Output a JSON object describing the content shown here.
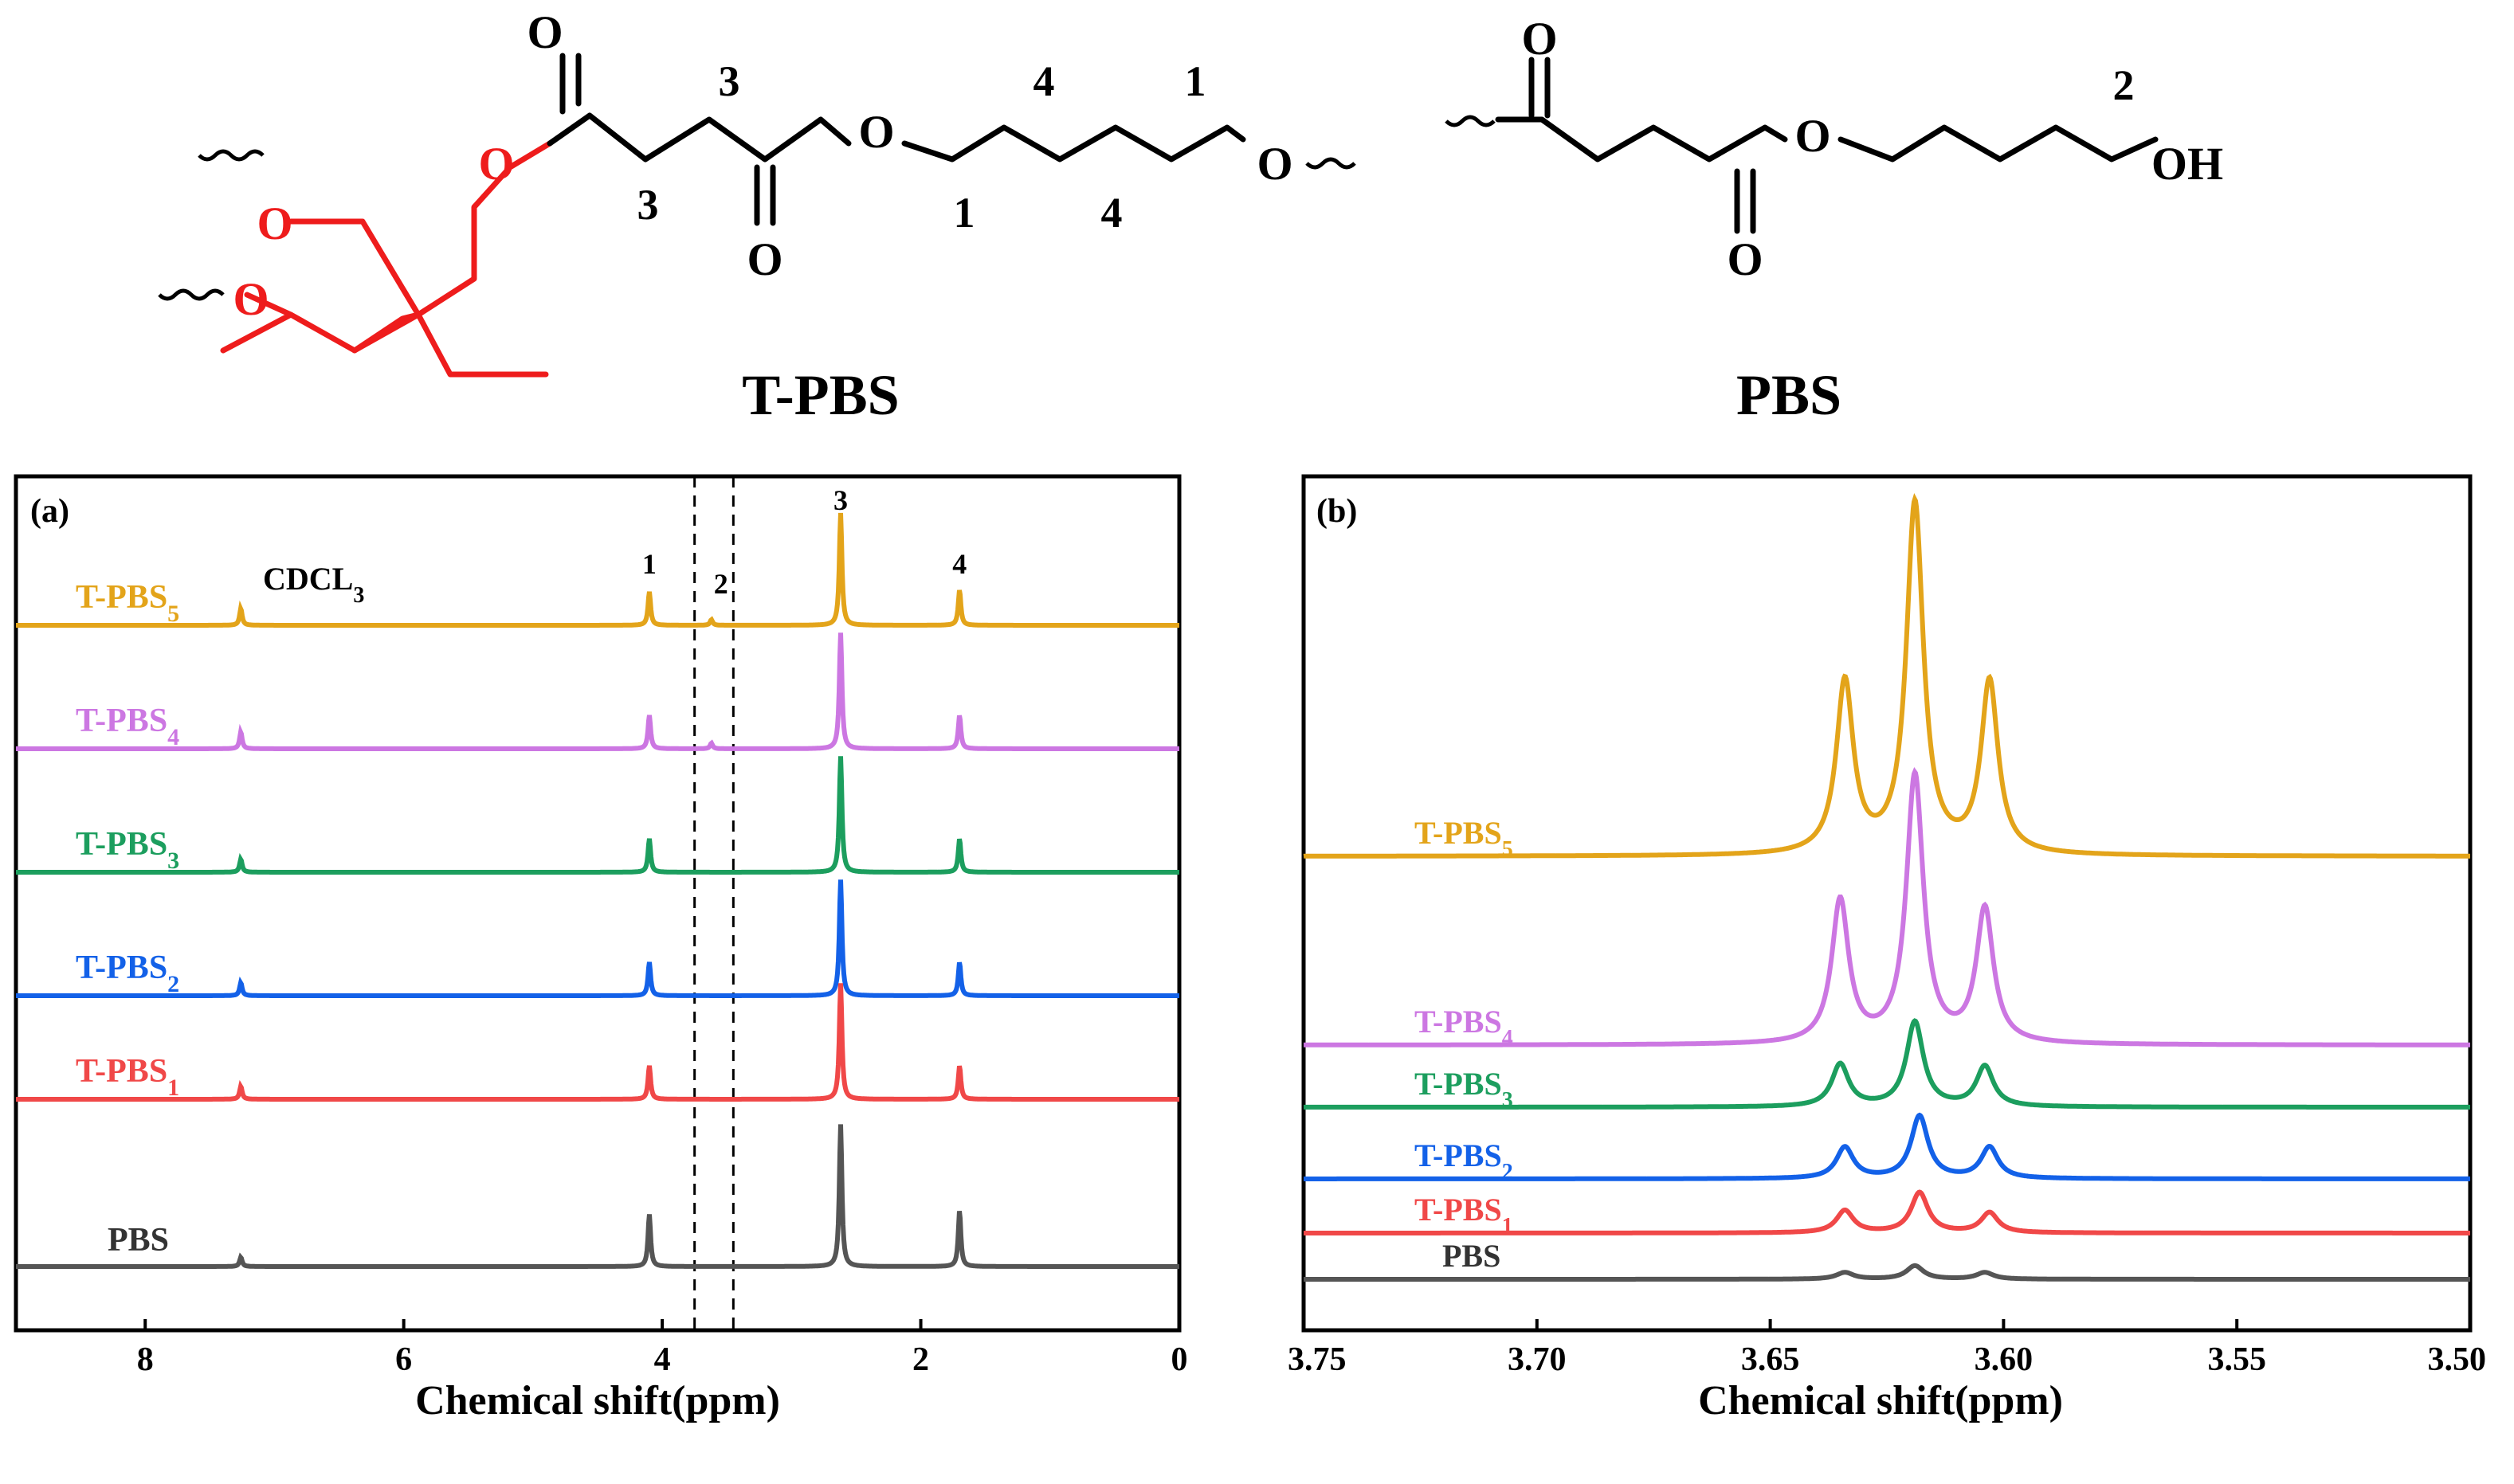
{
  "structures": {
    "tpbs": {
      "name": "T-PBS",
      "atoms": {
        "o_top": "O",
        "o_bottom": "O",
        "o_right": "O",
        "o_ester_red": "O",
        "o_red_1": "O",
        "o_red_2": "O"
      },
      "numbers": {
        "n3_top": "3",
        "n3_bottom": "3",
        "n4_top": "4",
        "n4_bottom": "4",
        "n1_top": "1",
        "n1_bottom": "1"
      }
    },
    "pbs": {
      "name": "PBS",
      "atoms": {
        "o_top": "O",
        "o_bottom": "O",
        "o_ester": "O",
        "oh": "OH"
      },
      "numbers": {
        "n2": "2"
      }
    },
    "colors": {
      "red": "#ee1c1c",
      "black": "#000000"
    }
  },
  "chart_data": [
    {
      "type": "line",
      "panel": "(a)",
      "title": "",
      "xlabel": "Chemical shift(ppm)",
      "ylabel": "",
      "xlim": [
        9,
        0
      ],
      "x_reversed": true,
      "x_ticks": [
        "8",
        "6",
        "4",
        "2",
        "0"
      ],
      "x_tick_values": [
        8,
        6,
        4,
        2,
        0
      ],
      "grid": false,
      "annotations": {
        "solvent": "CDCL",
        "solvent_sub": "3",
        "peak_1": "1",
        "peak_2": "2",
        "peak_3": "3",
        "peak_4": "4"
      },
      "solvent_shift": 7.26,
      "dashed_lines": [
        3.75,
        3.45
      ],
      "series": [
        {
          "name": "T-PBS",
          "sub": "5",
          "color": "#e3a41a",
          "peaks": [
            {
              "x": 7.26,
              "h": 0.09
            },
            {
              "x": 4.1,
              "h": 0.18
            },
            {
              "x": 3.62,
              "h": 0.03
            },
            {
              "x": 2.62,
              "h": 0.6
            },
            {
              "x": 1.7,
              "h": 0.19
            }
          ]
        },
        {
          "name": "T-PBS",
          "sub": "4",
          "color": "#cc77e2",
          "peaks": [
            {
              "x": 7.26,
              "h": 0.09
            },
            {
              "x": 4.1,
              "h": 0.18
            },
            {
              "x": 3.62,
              "h": 0.03
            },
            {
              "x": 2.62,
              "h": 0.62
            },
            {
              "x": 1.7,
              "h": 0.18
            }
          ]
        },
        {
          "name": "T-PBS",
          "sub": "3",
          "color": "#1c9e5e",
          "peaks": [
            {
              "x": 7.26,
              "h": 0.07
            },
            {
              "x": 4.1,
              "h": 0.18
            },
            {
              "x": 2.62,
              "h": 0.62
            },
            {
              "x": 1.7,
              "h": 0.18
            }
          ]
        },
        {
          "name": "T-PBS",
          "sub": "2",
          "color": "#1361e8",
          "peaks": [
            {
              "x": 7.26,
              "h": 0.07
            },
            {
              "x": 4.1,
              "h": 0.18
            },
            {
              "x": 2.62,
              "h": 0.62
            },
            {
              "x": 1.7,
              "h": 0.18
            }
          ]
        },
        {
          "name": "T-PBS",
          "sub": "1",
          "color": "#f04848",
          "peaks": [
            {
              "x": 7.26,
              "h": 0.07
            },
            {
              "x": 4.1,
              "h": 0.18
            },
            {
              "x": 2.62,
              "h": 0.62
            },
            {
              "x": 1.7,
              "h": 0.18
            }
          ]
        },
        {
          "name": "PBS",
          "sub": "",
          "color": "#555555",
          "peaks": [
            {
              "x": 7.26,
              "h": 0.05
            },
            {
              "x": 4.1,
              "h": 0.28
            },
            {
              "x": 2.62,
              "h": 0.76
            },
            {
              "x": 1.7,
              "h": 0.3
            }
          ]
        }
      ]
    },
    {
      "type": "line",
      "panel": "(b)",
      "title": "",
      "xlabel": "Chemical shift(ppm)",
      "ylabel": "",
      "xlim": [
        3.75,
        3.5
      ],
      "x_reversed": true,
      "x_ticks": [
        "3.75",
        "3.70",
        "3.65",
        "3.60",
        "3.55",
        "3.50"
      ],
      "x_tick_values": [
        3.75,
        3.7,
        3.65,
        3.6,
        3.55,
        3.5
      ],
      "grid": false,
      "series": [
        {
          "name": "T-PBS",
          "sub": "5",
          "color": "#e3a41a",
          "peaks": [
            {
              "x": 3.634,
              "h": 0.77
            },
            {
              "x": 3.619,
              "h": 1.57
            },
            {
              "x": 3.603,
              "h": 0.77
            }
          ]
        },
        {
          "name": "T-PBS",
          "sub": "4",
          "color": "#cc77e2",
          "peaks": [
            {
              "x": 3.635,
              "h": 0.64
            },
            {
              "x": 3.619,
              "h": 1.2
            },
            {
              "x": 3.604,
              "h": 0.6
            }
          ]
        },
        {
          "name": "T-PBS",
          "sub": "3",
          "color": "#1c9e5e",
          "peaks": [
            {
              "x": 3.635,
              "h": 0.19
            },
            {
              "x": 3.619,
              "h": 0.38
            },
            {
              "x": 3.604,
              "h": 0.18
            }
          ]
        },
        {
          "name": "T-PBS",
          "sub": "2",
          "color": "#1361e8",
          "peaks": [
            {
              "x": 3.634,
              "h": 0.14
            },
            {
              "x": 3.618,
              "h": 0.28
            },
            {
              "x": 3.603,
              "h": 0.14
            }
          ]
        },
        {
          "name": "T-PBS",
          "sub": "1",
          "color": "#f04848",
          "peaks": [
            {
              "x": 3.634,
              "h": 0.1
            },
            {
              "x": 3.618,
              "h": 0.18
            },
            {
              "x": 3.603,
              "h": 0.09
            }
          ]
        },
        {
          "name": "PBS",
          "sub": "",
          "color": "#555555",
          "peaks": [
            {
              "x": 3.634,
              "h": 0.03
            },
            {
              "x": 3.619,
              "h": 0.06
            },
            {
              "x": 3.604,
              "h": 0.03
            }
          ]
        }
      ]
    }
  ]
}
